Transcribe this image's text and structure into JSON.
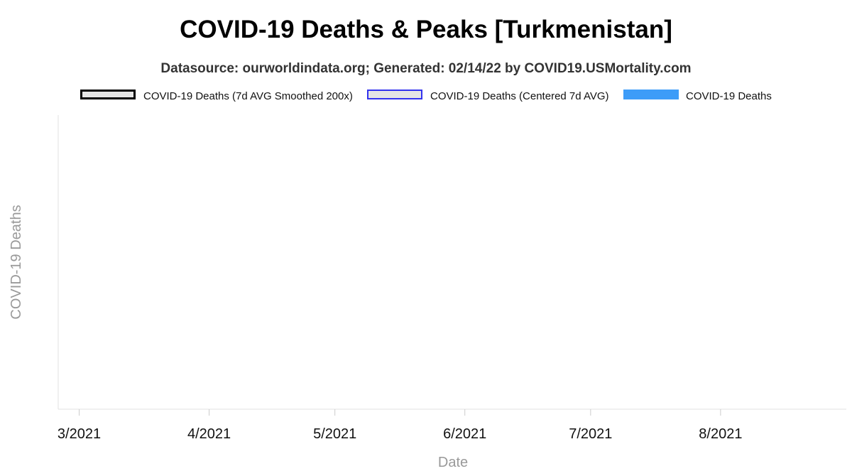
{
  "chart_data": {
    "type": "line",
    "title": "COVID-19 Deaths & Peaks [Turkmenistan]",
    "subtitle": "Datasource: ourworldindata.org; Generated: 02/14/22 by COVID19.USMortality.com",
    "xlabel": "Date",
    "ylabel": "COVID-19 Deaths",
    "x_ticks": [
      "3/2021",
      "4/2021",
      "5/2021",
      "6/2021",
      "7/2021",
      "8/2021"
    ],
    "x_range": [
      "2021-02-24",
      "2021-08-31"
    ],
    "grid": false,
    "legend_position": "top",
    "series": [
      {
        "name": "COVID-19 Deaths (7d AVG Smoothed 200x)",
        "style": "outlined-box",
        "color": "#000000",
        "fill": "#e5e5e5",
        "values": []
      },
      {
        "name": "COVID-19 Deaths (Centered 7d AVG)",
        "style": "outlined-box",
        "color": "#3333ee",
        "fill": "#e5e5e5",
        "values": []
      },
      {
        "name": "COVID-19 Deaths",
        "style": "filled",
        "color": "#3d9cf8",
        "values": []
      }
    ]
  }
}
